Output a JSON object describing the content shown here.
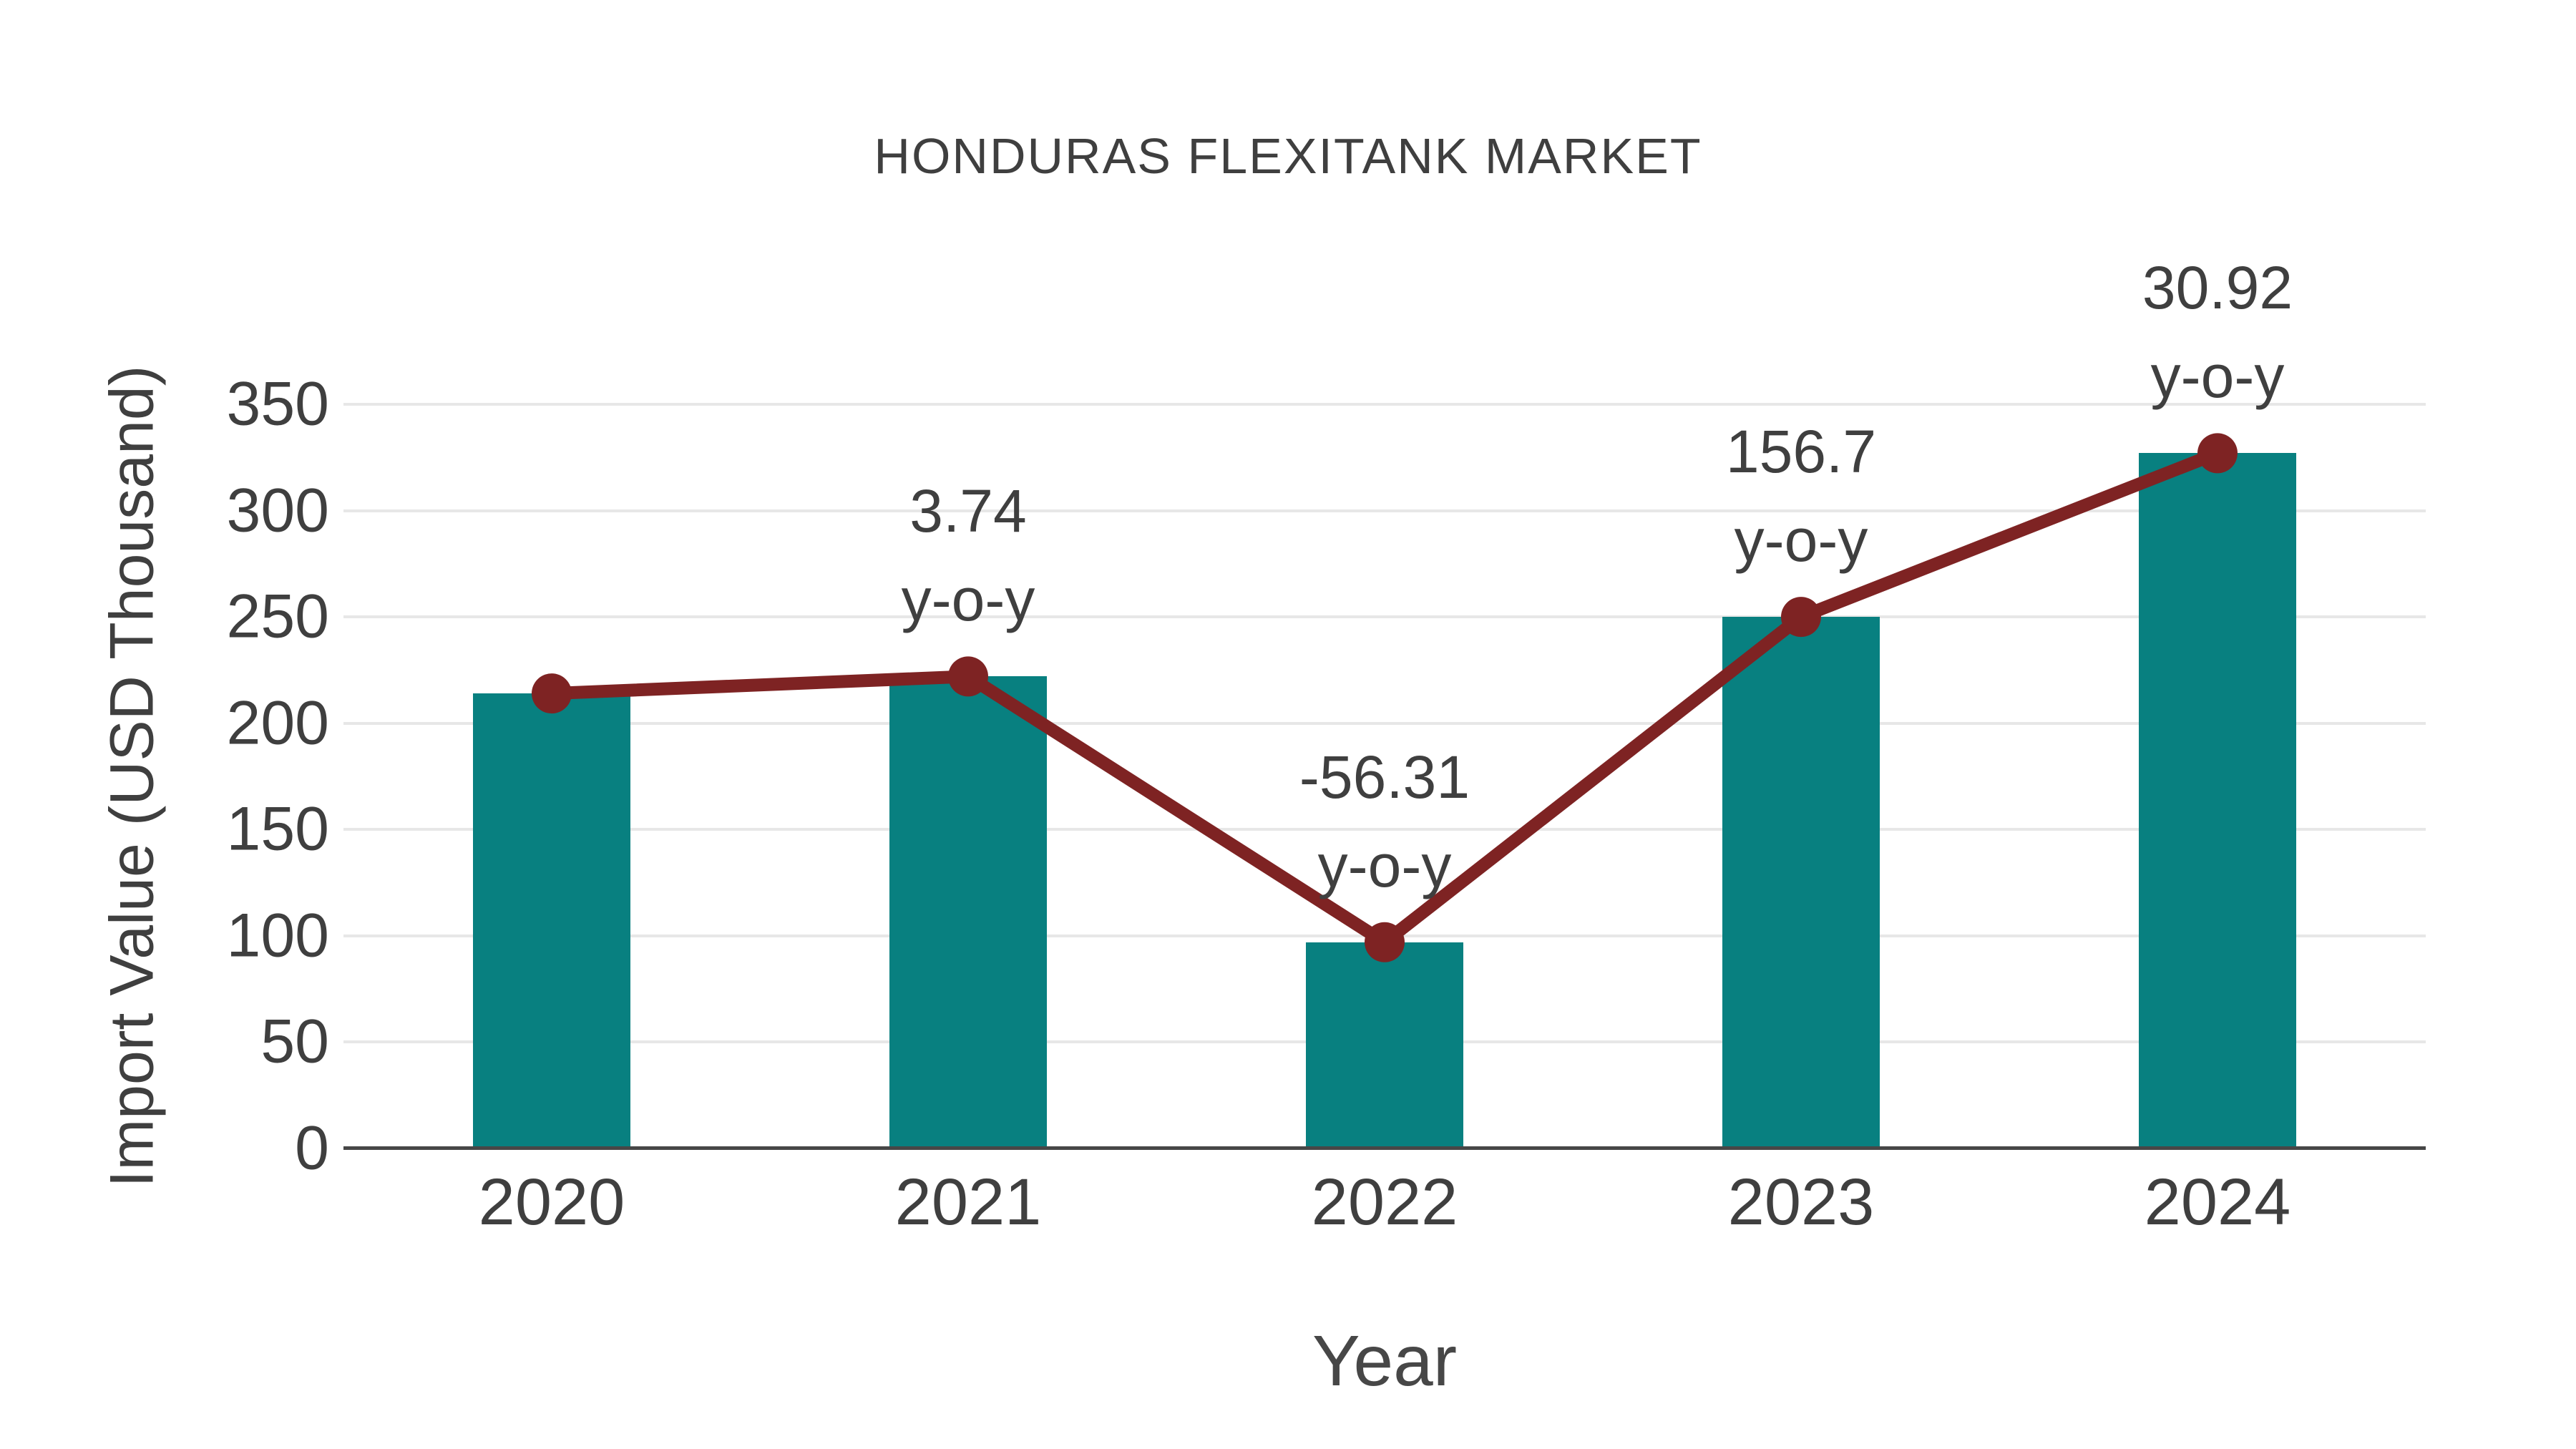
{
  "title": "HONDURAS FLEXITANK MARKET",
  "chart_data": {
    "type": "bar",
    "subtype": "bar-with-line-overlay",
    "title": "HONDURAS FLEXITANK MARKET",
    "xlabel": "Year",
    "ylabel": "Import Value (USD Thousand)",
    "categories": [
      "2020",
      "2021",
      "2022",
      "2023",
      "2024"
    ],
    "series": [
      {
        "name": "Import Value (USD Thousand)",
        "type": "bar",
        "values": [
          214,
          222,
          97,
          250,
          327
        ]
      },
      {
        "name": "y-o-y growth (%)",
        "type": "line",
        "anchored_to": "bar-tops",
        "values": [
          214,
          222,
          97,
          250,
          327
        ],
        "point_labels": [
          null,
          "3.74",
          "-56.31",
          "156.7",
          "30.92"
        ]
      }
    ],
    "annotations": [
      {
        "category": "2021",
        "line1": "3.74",
        "line2": "y-o-y"
      },
      {
        "category": "2022",
        "line1": "-56.31",
        "line2": "y-o-y"
      },
      {
        "category": "2023",
        "line1": "156.7",
        "line2": "y-o-y"
      },
      {
        "category": "2024",
        "line1": "30.92",
        "line2": "y-o-y"
      }
    ],
    "ylim": [
      0,
      350
    ],
    "yticks": [
      0,
      50,
      100,
      150,
      200,
      250,
      300,
      350
    ],
    "grid": "horizontal",
    "legend": "none"
  },
  "colors": {
    "bar": "#088080",
    "line": "#7E2323",
    "grid": "#E7E7E7",
    "axis": "#474747",
    "text": "#3F3F3F",
    "background": "#FFFFFF"
  }
}
